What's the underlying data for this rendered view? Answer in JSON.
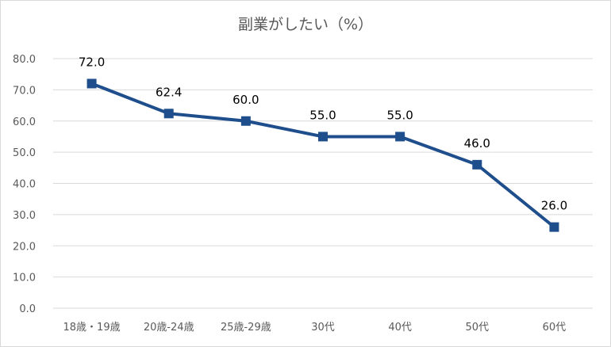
{
  "chart_data": {
    "type": "line",
    "title": "副業がしたい（%）",
    "categories": [
      "18歳・19歳",
      "20歳-24歳",
      "25歳-29歳",
      "30代",
      "40代",
      "50代",
      "60代"
    ],
    "series": [
      {
        "values": [
          72.0,
          62.4,
          60.0,
          55.0,
          55.0,
          46.0,
          26.0
        ],
        "data_labels": [
          "72.0",
          "62.4",
          "60.0",
          "55.0",
          "55.0",
          "46.0",
          "26.0"
        ]
      }
    ],
    "y_ticks": [
      "0.0",
      "10.0",
      "20.0",
      "30.0",
      "40.0",
      "50.0",
      "60.0",
      "70.0",
      "80.0"
    ],
    "ylim": [
      0,
      80
    ],
    "grid": true,
    "legend": "none",
    "marker": "square",
    "line_color": "#1f4e8c",
    "grid_color": "#d9d9d9"
  }
}
